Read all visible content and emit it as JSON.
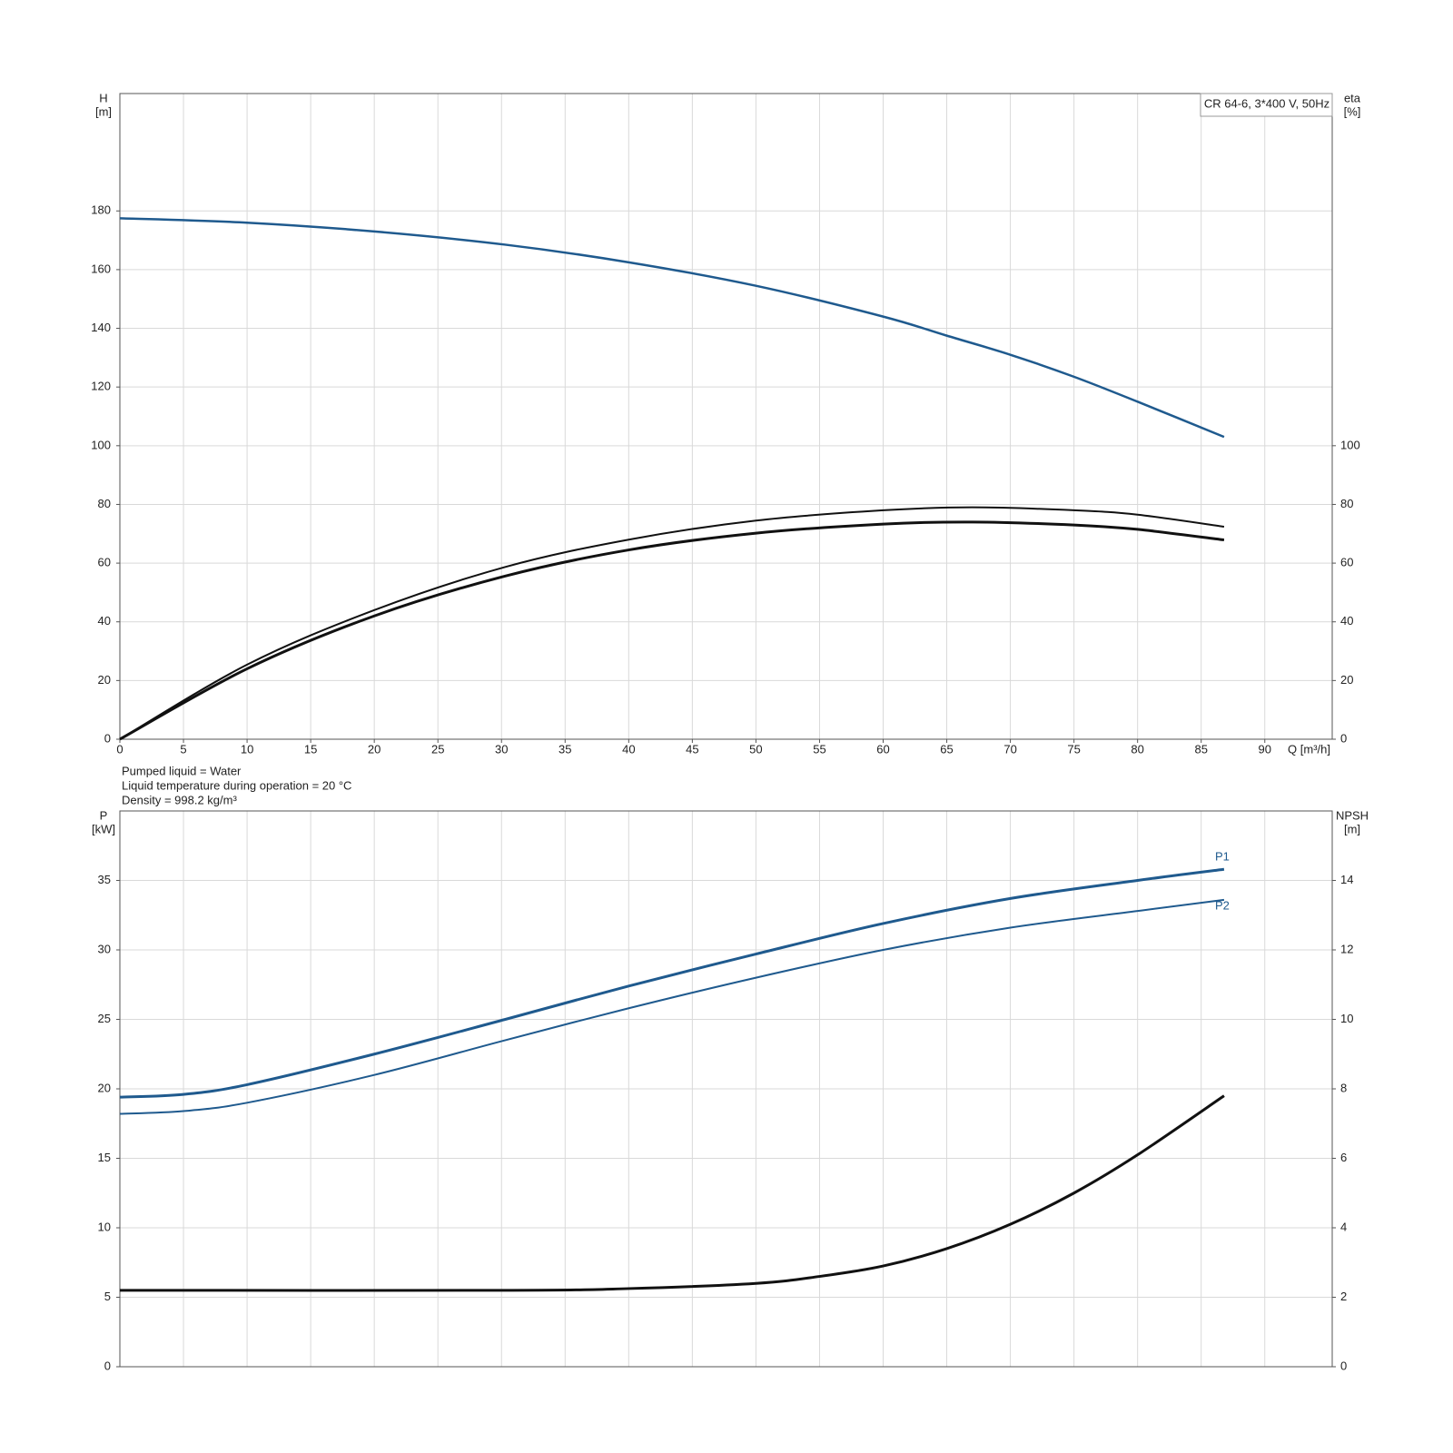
{
  "chart_data": [
    {
      "type": "line",
      "xlabel": "Q [m³/h]",
      "ylabel": [
        "H",
        "[m]"
      ],
      "y2label": [
        "eta",
        "[%]"
      ],
      "label": "CR 64-6, 3*400 V, 50Hz",
      "xlim": [
        0,
        95.3
      ],
      "xticks": [
        0,
        5,
        10,
        15,
        20,
        25,
        30,
        35,
        40,
        45,
        50,
        55,
        60,
        65,
        70,
        75,
        80,
        85,
        90
      ],
      "ylim": [
        0,
        220
      ],
      "yticks": [
        0,
        20,
        40,
        60,
        80,
        100,
        120,
        140,
        160,
        180
      ],
      "y2lim": [
        0,
        220
      ],
      "y2ticks": [
        0,
        20,
        40,
        60,
        80,
        100
      ],
      "grid": true,
      "series": [
        {
          "color": "#1f5a8e",
          "width": 2.5,
          "x": [
            0,
            10,
            20,
            30.3,
            40,
            50,
            60,
            65,
            70,
            75,
            80,
            86.8
          ],
          "values": [
            177.5,
            176,
            173,
            168.5,
            162.5,
            154.5,
            144,
            137.5,
            131,
            123.5,
            115,
            103
          ]
        },
        {
          "color": "#111111",
          "width": 2,
          "axis": "y2",
          "x": [
            0,
            10,
            20,
            30.3,
            40,
            50,
            60,
            67,
            75,
            80,
            86.8
          ],
          "values": [
            0,
            25.4,
            44,
            58.7,
            68,
            74.5,
            78,
            79,
            78,
            76.5,
            72.4
          ]
        },
        {
          "color": "#111111",
          "width": 3,
          "axis": "y2",
          "x": [
            0,
            10,
            20,
            30.3,
            40,
            50,
            60,
            67,
            75,
            80,
            86.8
          ],
          "values": [
            0,
            24,
            42,
            55.6,
            64.5,
            70.2,
            73.3,
            74,
            73,
            71.5,
            67.9
          ]
        }
      ]
    },
    {
      "type": "line",
      "ylabel": [
        "P",
        "[kW]"
      ],
      "y2label": [
        "NPSH",
        "[m]"
      ],
      "notes": [
        "Pumped liquid = Water",
        "Liquid temperature during operation = 20 °C",
        "Density = 998.2 kg/m³"
      ],
      "ylim": [
        0,
        40
      ],
      "yticks": [
        0,
        5,
        10,
        15,
        20,
        25,
        30,
        35
      ],
      "y2lim": [
        0,
        16
      ],
      "y2ticks": [
        0,
        2,
        4,
        6,
        8,
        10,
        12,
        14
      ],
      "grid": true,
      "series": [
        {
          "name": "P1",
          "color": "#1f5a8e",
          "width": 3,
          "x": [
            0,
            5,
            10,
            20,
            30.3,
            40,
            50,
            60,
            70,
            80,
            86.8
          ],
          "values": [
            19.4,
            19.6,
            20.3,
            22.5,
            25,
            27.4,
            29.7,
            31.9,
            33.7,
            35,
            35.8
          ]
        },
        {
          "name": "P2",
          "color": "#1f5a8e",
          "width": 2,
          "x": [
            0,
            5,
            10,
            20,
            30.3,
            40,
            50,
            60,
            70,
            80,
            86.8
          ],
          "values": [
            18.2,
            18.4,
            19,
            21,
            23.5,
            25.8,
            28,
            30,
            31.6,
            32.8,
            33.6
          ]
        },
        {
          "color": "#111111",
          "width": 3,
          "axis": "y2",
          "x": [
            0,
            30.3,
            40,
            50,
            55,
            60,
            65,
            70,
            75,
            80,
            86.8
          ],
          "values": [
            2.2,
            2.2,
            2.25,
            2.4,
            2.6,
            2.9,
            3.4,
            4.1,
            5,
            6.1,
            7.8
          ]
        }
      ]
    }
  ]
}
